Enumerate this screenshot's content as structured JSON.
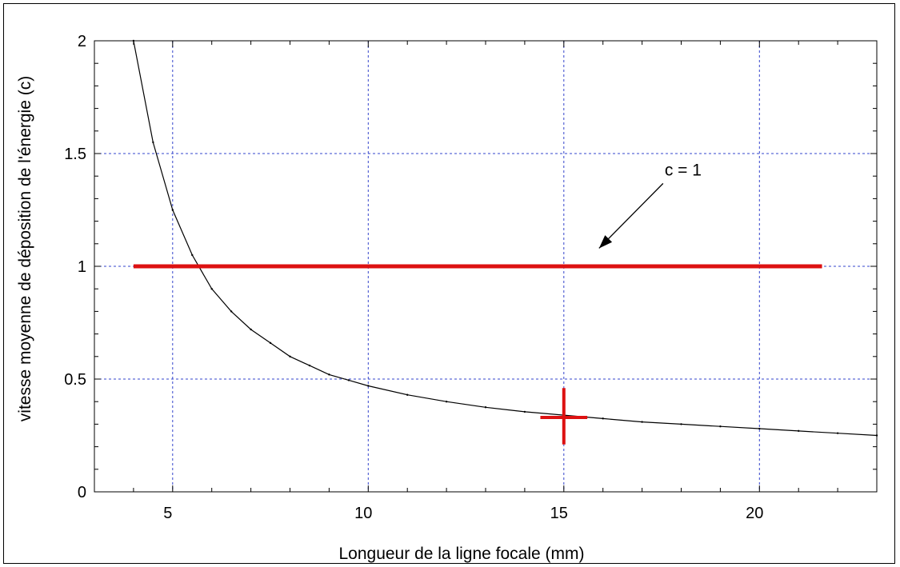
{
  "chart_data": {
    "type": "line",
    "title": "",
    "xlabel": "Longueur de la ligne focale (mm)",
    "ylabel": "vitesse moyenne de déposition de l'énergie (c)",
    "xlim": [
      3,
      23
    ],
    "ylim": [
      0,
      2
    ],
    "xticks": [
      5,
      10,
      15,
      20
    ],
    "xtick_labels": [
      "5",
      "10",
      "15",
      "20"
    ],
    "yticks": [
      0,
      0.5,
      1,
      1.5,
      2
    ],
    "ytick_labels": [
      "0",
      "0.5",
      "1",
      "1.5",
      "2"
    ],
    "grid": true,
    "series": [
      {
        "type": "line",
        "color": "#000000",
        "x": [
          4.0,
          4.5,
          5.0,
          5.5,
          6.0,
          6.5,
          7.0,
          7.5,
          8.0,
          8.5,
          9.0,
          9.5,
          10.0,
          11.0,
          12.0,
          13.0,
          14.0,
          15.0,
          16.0,
          17.0,
          18.0,
          19.0,
          20.0,
          21.0,
          22.0,
          23.0
        ],
        "y": [
          2.0,
          1.55,
          1.25,
          1.05,
          0.9,
          0.8,
          0.72,
          0.66,
          0.6,
          0.56,
          0.52,
          0.495,
          0.47,
          0.43,
          0.4,
          0.375,
          0.355,
          0.34,
          0.325,
          0.31,
          0.3,
          0.29,
          0.28,
          0.27,
          0.26,
          0.25
        ]
      }
    ],
    "hline": {
      "y": 1,
      "x_start": 4,
      "x_end": 21.6,
      "color": "#dd1111"
    },
    "marker": {
      "x": 15,
      "y": 0.33,
      "y_low": 0.21,
      "y_high": 0.46,
      "x_low": 14.4,
      "x_high": 15.6,
      "color": "#dd1111"
    },
    "annotation": {
      "text": "c = 1",
      "x_text": 17.7,
      "y_text": 1.41,
      "arrow_to_x": 15.9,
      "arrow_to_y": 1.08
    }
  }
}
